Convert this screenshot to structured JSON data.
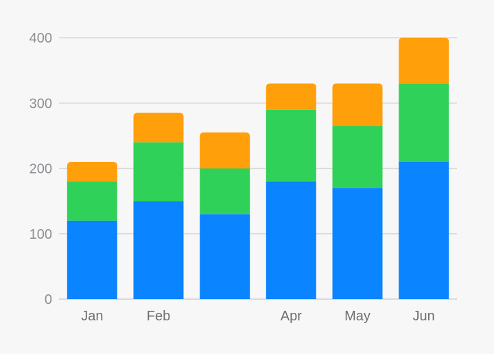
{
  "chart_data": {
    "type": "bar",
    "stacked": true,
    "categories": [
      "Jan",
      "Feb",
      "",
      "Apr",
      "May",
      "Jun"
    ],
    "series": [
      {
        "values": [
          120,
          150,
          130,
          180,
          170,
          210
        ],
        "color": "#0a84ff"
      },
      {
        "values": [
          60,
          90,
          70,
          110,
          95,
          120
        ],
        "color": "#30d158"
      },
      {
        "values": [
          30,
          45,
          55,
          40,
          65,
          70
        ],
        "color": "#ff9f0a"
      }
    ],
    "yticks": [
      "0",
      "100",
      "200",
      "300",
      "400"
    ],
    "ylim": [
      0,
      400
    ],
    "grid": true,
    "legend": "none",
    "title": "",
    "xlabel": "",
    "ylabel": ""
  }
}
